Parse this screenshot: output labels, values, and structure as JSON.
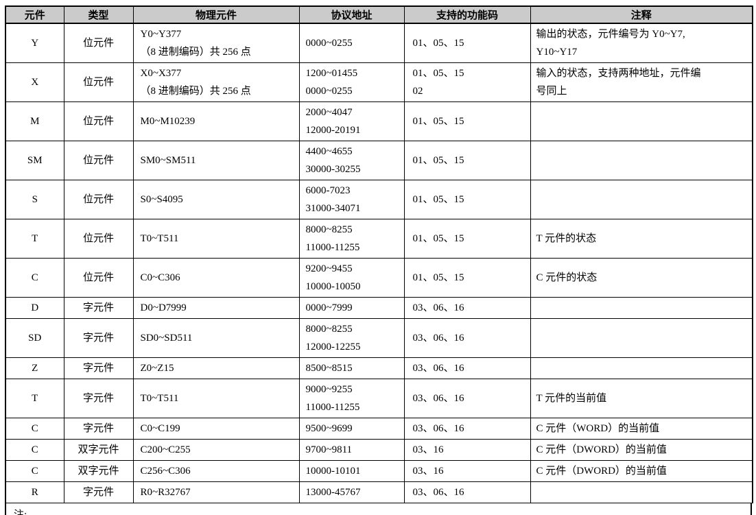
{
  "table": {
    "headers": [
      "元件",
      "类型",
      "物理元件",
      "协议地址",
      "支持的功能码",
      "注释"
    ],
    "rows": [
      {
        "component": "Y",
        "type": "位元件",
        "physical": "Y0~Y377\n（8 进制编码）共 256 点",
        "address": "0000~0255",
        "codes": "01、05、15",
        "note": "输出的状态，元件编号为 Y0~Y7,\nY10~Y17"
      },
      {
        "component": "X",
        "type": "位元件",
        "physical": "X0~X377\n（8 进制编码）共 256 点",
        "address": "1200~01455\n0000~0255",
        "codes": "01、05、15\n02",
        "note": "输入的状态，支持两种地址，元件编\n号同上"
      },
      {
        "component": "M",
        "type": "位元件",
        "physical": "M0~M10239",
        "address": "2000~4047\n12000-20191",
        "codes": "01、05、15",
        "note": ""
      },
      {
        "component": "SM",
        "type": "位元件",
        "physical": "SM0~SM511",
        "address": "4400~4655\n30000-30255",
        "codes": "01、05、15",
        "note": ""
      },
      {
        "component": "S",
        "type": "位元件",
        "physical": "S0~S4095",
        "address": "6000-7023\n31000-34071",
        "codes": "01、05、15",
        "note": ""
      },
      {
        "component": "T",
        "type": "位元件",
        "physical": "T0~T511",
        "address": "8000~8255\n11000-11255",
        "codes": "01、05、15",
        "note": "T 元件的状态"
      },
      {
        "component": "C",
        "type": "位元件",
        "physical": "C0~C306",
        "address": "9200~9455\n10000-10050",
        "codes": "01、05、15",
        "note": "C 元件的状态"
      },
      {
        "component": "D",
        "type": "字元件",
        "physical": "D0~D7999",
        "address": "0000~7999",
        "codes": "03、06、16",
        "note": ""
      },
      {
        "component": "SD",
        "type": "字元件",
        "physical": "SD0~SD511",
        "address": "8000~8255\n12000-12255",
        "codes": "03、06、16",
        "note": ""
      },
      {
        "component": "Z",
        "type": "字元件",
        "physical": "Z0~Z15",
        "address": "8500~8515",
        "codes": "03、06、16",
        "note": ""
      },
      {
        "component": "T",
        "type": "字元件",
        "physical": "T0~T511",
        "address": "9000~9255\n11000-11255",
        "codes": "03、06、16",
        "note": "T 元件的当前值"
      },
      {
        "component": "C",
        "type": "字元件",
        "physical": "C0~C199",
        "address": "9500~9699",
        "codes": "03、06、16",
        "note": "C 元件（WORD）的当前值"
      },
      {
        "component": "C",
        "type": "双字元件",
        "physical": "C200~C255",
        "address": "9700~9811",
        "codes": "03、16",
        "note": "C 元件（DWORD）的当前值"
      },
      {
        "component": "C",
        "type": "双字元件",
        "physical": "C256~C306",
        "address": "10000-10101",
        "codes": "03、16",
        "note": "C 元件（DWORD）的当前值"
      },
      {
        "component": "R",
        "type": "字元件",
        "physical": "R0~R32767",
        "address": "13000-45767",
        "codes": "03、06、16",
        "note": ""
      }
    ],
    "footnote": "注:"
  },
  "colors": {
    "header_bg": "#cbcbcb",
    "border": "#000000",
    "text": "#000000"
  }
}
